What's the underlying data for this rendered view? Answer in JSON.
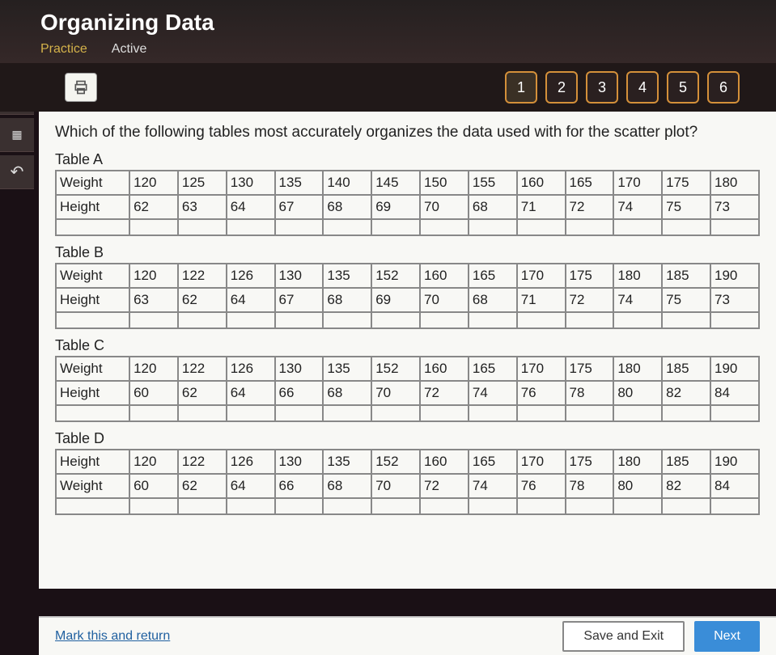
{
  "header": {
    "title": "Organizing Data",
    "tab_practice": "Practice",
    "tab_active": "Active"
  },
  "pages": [
    "1",
    "2",
    "3",
    "4",
    "5",
    "6"
  ],
  "question": "Which of the following tables most accurately organizes the data used with for the scatter plot?",
  "tables": [
    {
      "label": "Table A",
      "row1_header": "Weight",
      "row1": [
        "120",
        "125",
        "130",
        "135",
        "140",
        "145",
        "150",
        "155",
        "160",
        "165",
        "170",
        "175",
        "180"
      ],
      "row2_header": "Height",
      "row2": [
        "62",
        "63",
        "64",
        "67",
        "68",
        "69",
        "70",
        "68",
        "71",
        "72",
        "74",
        "75",
        "73"
      ]
    },
    {
      "label": "Table B",
      "row1_header": "Weight",
      "row1": [
        "120",
        "122",
        "126",
        "130",
        "135",
        "152",
        "160",
        "165",
        "170",
        "175",
        "180",
        "185",
        "190"
      ],
      "row2_header": "Height",
      "row2": [
        "63",
        "62",
        "64",
        "67",
        "68",
        "69",
        "70",
        "68",
        "71",
        "72",
        "74",
        "75",
        "73"
      ]
    },
    {
      "label": "Table C",
      "row1_header": "Weight",
      "row1": [
        "120",
        "122",
        "126",
        "130",
        "135",
        "152",
        "160",
        "165",
        "170",
        "175",
        "180",
        "185",
        "190"
      ],
      "row2_header": "Height",
      "row2": [
        "60",
        "62",
        "64",
        "66",
        "68",
        "70",
        "72",
        "74",
        "76",
        "78",
        "80",
        "82",
        "84"
      ]
    },
    {
      "label": "Table D",
      "row1_header": "Height",
      "row1": [
        "120",
        "122",
        "126",
        "130",
        "135",
        "152",
        "160",
        "165",
        "170",
        "175",
        "180",
        "185",
        "190"
      ],
      "row2_header": "Weight",
      "row2": [
        "60",
        "62",
        "64",
        "66",
        "68",
        "70",
        "72",
        "74",
        "76",
        "78",
        "80",
        "82",
        "84"
      ]
    }
  ],
  "footer": {
    "mark_link": "Mark this and return",
    "save_exit": "Save and Exit",
    "next": "Next"
  }
}
